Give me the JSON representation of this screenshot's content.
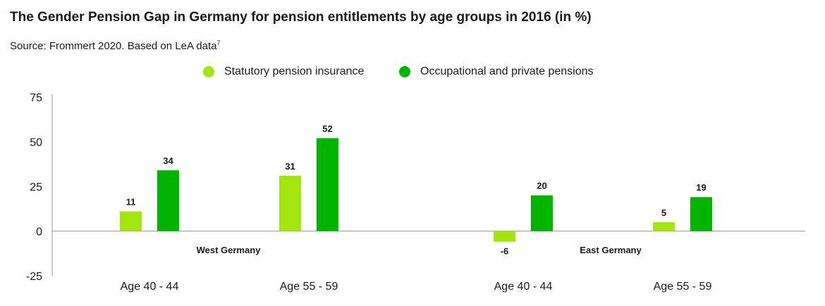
{
  "header": {
    "title": "The Gender Pension Gap in Germany for pension entitlements by age groups in 2016 (in %)",
    "source": "Source: Frommert 2020. Based on LeA data",
    "source_footnote": "7"
  },
  "chart_data": {
    "type": "bar",
    "title": "The Gender Pension Gap in Germany for pension entitlements by age groups in 2016 (in %)",
    "xlabel": "",
    "ylabel": "",
    "ylim": [
      -25,
      75
    ],
    "yticks": [
      75,
      50,
      25,
      0,
      -25
    ],
    "grid": false,
    "legend_placement": "top-center",
    "groups": [
      {
        "label": "West Germany",
        "categories": [
          "Age 40 - 44",
          "Age 55 - 59"
        ]
      },
      {
        "label": "East Germany",
        "categories": [
          "Age 40 - 44",
          "Age 55 - 59"
        ]
      }
    ],
    "categories": [
      "Age 40 - 44",
      "Age 55 - 59",
      "Age 40 - 44",
      "Age 55 - 59"
    ],
    "series": [
      {
        "name": "Statutory pension insurance",
        "color": "#a3e60f",
        "values": [
          11,
          31,
          -6,
          5
        ]
      },
      {
        "name": "Occupational and private pensions",
        "color": "#00b400",
        "values": [
          34,
          52,
          20,
          19
        ]
      }
    ]
  }
}
